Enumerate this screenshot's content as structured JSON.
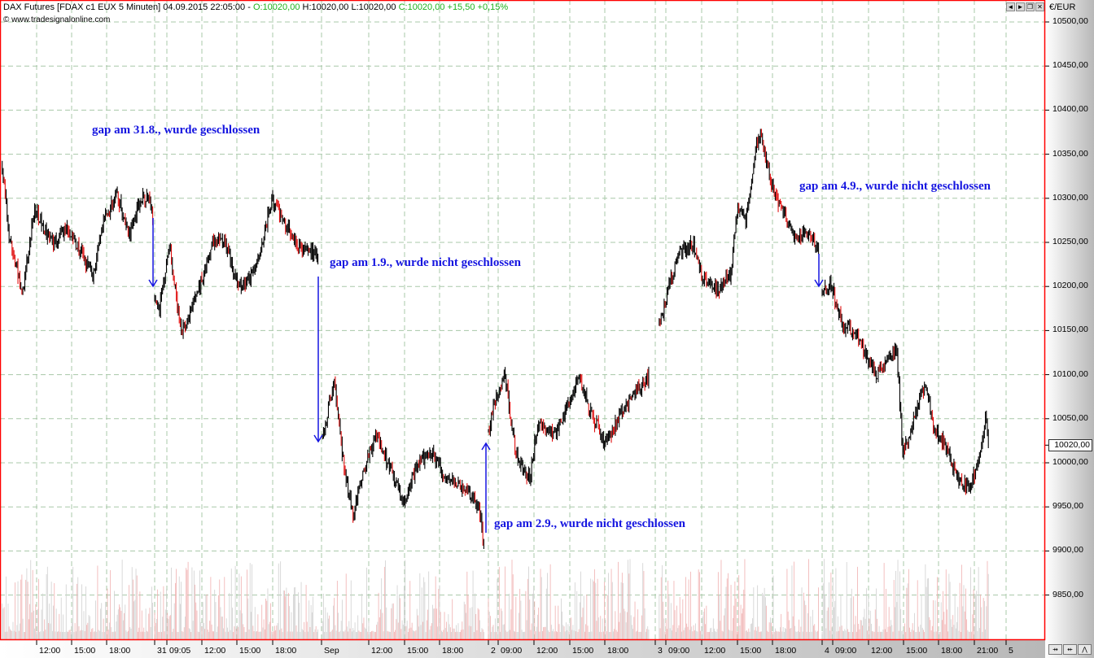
{
  "header": {
    "title": "DAX Futures [FDAX c1 EUX  5 Minuten] 04.09.2015 22:05:00 -",
    "open": "O:10020,00",
    "hlc": "H:10020,00 L:10020,00",
    "close": "C:10020,00 +15,50 +0,15%",
    "copyright": "© www.tradesignalonline.com",
    "window_buttons": [
      "◄",
      "►",
      "❐",
      "✕"
    ]
  },
  "colors": {
    "up": "#000000",
    "down": "#e01010",
    "annotation": "#1515e0",
    "grid": "#a8c8a8",
    "frame": "#ff0000",
    "volume": "#f0b0b0"
  },
  "chart_data": {
    "type": "candlestick",
    "interval": "5 Minuten",
    "currency": "€/EUR",
    "ylim": [
      9800,
      10510
    ],
    "yticks": [
      "10500,00",
      "10450,00",
      "10400,00",
      "10350,00",
      "10300,00",
      "10250,00",
      "10200,00",
      "10150,00",
      "10100,00",
      "10050,00",
      "10000,00",
      "9950,00",
      "9900,00",
      "9850,00"
    ],
    "ytick_values": [
      10500,
      10450,
      10400,
      10350,
      10300,
      10250,
      10200,
      10150,
      10100,
      10050,
      10000,
      9950,
      9900,
      9850
    ],
    "xticks": [
      "12:00",
      "15:00",
      "18:00",
      "31",
      "09:05",
      "12:00",
      "15:00",
      "18:00",
      "Sep",
      "12:00",
      "15:00",
      "18:00",
      "2",
      "09:00",
      "12:00",
      "15:00",
      "18:00",
      "3",
      "09:00",
      "12:00",
      "15:00",
      "18:00",
      "4",
      "09:00",
      "12:00",
      "15:00",
      "18:00",
      "21:00",
      "5"
    ],
    "last_price": "10020,00",
    "grid": true,
    "close_path": [
      [
        "28.08",
        "09:05",
        10336
      ],
      [
        "28.08",
        "09:45",
        10248
      ],
      [
        "28.08",
        "10:50",
        10193
      ],
      [
        "28.08",
        "11:50",
        10290
      ],
      [
        "28.08",
        "13:15",
        10248
      ],
      [
        "28.08",
        "14:40",
        10267
      ],
      [
        "28.08",
        "16:05",
        10230
      ],
      [
        "28.08",
        "16:45",
        10211
      ],
      [
        "28.08",
        "17:50",
        10280
      ],
      [
        "28.08",
        "18:50",
        10303
      ],
      [
        "28.08",
        "19:55",
        10257
      ],
      [
        "28.08",
        "20:35",
        10294
      ],
      [
        "28.08",
        "21:20",
        10303
      ],
      [
        "28.08",
        "21:55",
        10280
      ],
      [
        "31.08",
        "08:00",
        10188
      ],
      [
        "31.08",
        "08:20",
        10170
      ],
      [
        "31.08",
        "09:15",
        10248
      ],
      [
        "31.08",
        "10:15",
        10147
      ],
      [
        "31.08",
        "11:30",
        10188
      ],
      [
        "31.08",
        "12:55",
        10248
      ],
      [
        "31.08",
        "13:55",
        10253
      ],
      [
        "31.08",
        "15:00",
        10202
      ],
      [
        "31.08",
        "16:05",
        10207
      ],
      [
        "31.08",
        "17:05",
        10248
      ],
      [
        "31.08",
        "17:55",
        10299
      ],
      [
        "31.08",
        "19:10",
        10267
      ],
      [
        "31.08",
        "20:15",
        10244
      ],
      [
        "31.08",
        "21:55",
        10234
      ],
      [
        "01.09",
        "08:05",
        10027
      ],
      [
        "01.09",
        "09:05",
        10096
      ],
      [
        "01.09",
        "09:45",
        10008
      ],
      [
        "01.09",
        "10:40",
        9939
      ],
      [
        "01.09",
        "11:30",
        9990
      ],
      [
        "01.09",
        "12:35",
        10031
      ],
      [
        "01.09",
        "13:55",
        9990
      ],
      [
        "01.09",
        "15:00",
        9953
      ],
      [
        "01.09",
        "16:05",
        9999
      ],
      [
        "01.09",
        "17:25",
        10008
      ],
      [
        "01.09",
        "18:30",
        9981
      ],
      [
        "01.09",
        "20:15",
        9971
      ],
      [
        "01.09",
        "21:20",
        9948
      ],
      [
        "01.09",
        "21:50",
        9898
      ],
      [
        "02.09",
        "08:00",
        10036
      ],
      [
        "02.09",
        "08:40",
        10073
      ],
      [
        "02.09",
        "09:25",
        10100
      ],
      [
        "02.09",
        "10:20",
        10008
      ],
      [
        "02.09",
        "11:30",
        9981
      ],
      [
        "02.09",
        "12:10",
        10045
      ],
      [
        "02.09",
        "13:35",
        10031
      ],
      [
        "02.09",
        "15:00",
        10073
      ],
      [
        "02.09",
        "15:40",
        10100
      ],
      [
        "02.09",
        "16:45",
        10054
      ],
      [
        "02.09",
        "17:55",
        10022
      ],
      [
        "02.09",
        "19:10",
        10054
      ],
      [
        "02.09",
        "20:35",
        10082
      ],
      [
        "02.09",
        "21:40",
        10100
      ],
      [
        "03.09",
        "08:20",
        10156
      ],
      [
        "03.09",
        "09:25",
        10211
      ],
      [
        "03.09",
        "10:05",
        10239
      ],
      [
        "03.09",
        "11:10",
        10248
      ],
      [
        "03.09",
        "12:00",
        10211
      ],
      [
        "03.09",
        "13:15",
        10197
      ],
      [
        "03.09",
        "14:20",
        10211
      ],
      [
        "03.09",
        "15:00",
        10290
      ],
      [
        "03.09",
        "15:40",
        10276
      ],
      [
        "03.09",
        "16:25",
        10350
      ],
      [
        "03.09",
        "16:55",
        10377
      ],
      [
        "03.09",
        "17:50",
        10313
      ],
      [
        "03.09",
        "18:50",
        10285
      ],
      [
        "03.09",
        "19:55",
        10253
      ],
      [
        "03.09",
        "20:55",
        10262
      ],
      [
        "03.09",
        "21:55",
        10239
      ],
      [
        "04.09",
        "08:00",
        10188
      ],
      [
        "04.09",
        "08:40",
        10207
      ],
      [
        "04.09",
        "09:45",
        10156
      ],
      [
        "04.09",
        "10:50",
        10147
      ],
      [
        "04.09",
        "12:35",
        10100
      ],
      [
        "04.09",
        "13:35",
        10119
      ],
      [
        "04.09",
        "14:20",
        10128
      ],
      [
        "04.09",
        "14:50",
        10008
      ],
      [
        "04.09",
        "15:40",
        10045
      ],
      [
        "04.09",
        "16:45",
        10091
      ],
      [
        "04.09",
        "17:25",
        10040
      ],
      [
        "04.09",
        "18:30",
        10018
      ],
      [
        "04.09",
        "19:35",
        9976
      ],
      [
        "04.09",
        "20:35",
        9971
      ],
      [
        "04.09",
        "21:20",
        10008
      ],
      [
        "04.09",
        "21:50",
        10054
      ],
      [
        "04.09",
        "22:05",
        10020
      ]
    ],
    "annotations": [
      {
        "text": "gap am 31.8., wurde geschlossen",
        "arrow": "down"
      },
      {
        "text": "gap am 1.9., wurde nicht geschlossen",
        "arrow": "down"
      },
      {
        "text": "gap am 2.9., wurde nicht geschlossen",
        "arrow": "up"
      },
      {
        "text": "gap am 4.9., wurde nicht geschlossen",
        "arrow": "down"
      }
    ]
  },
  "nav_buttons": [
    "⇸",
    "⇷",
    "⋀"
  ]
}
